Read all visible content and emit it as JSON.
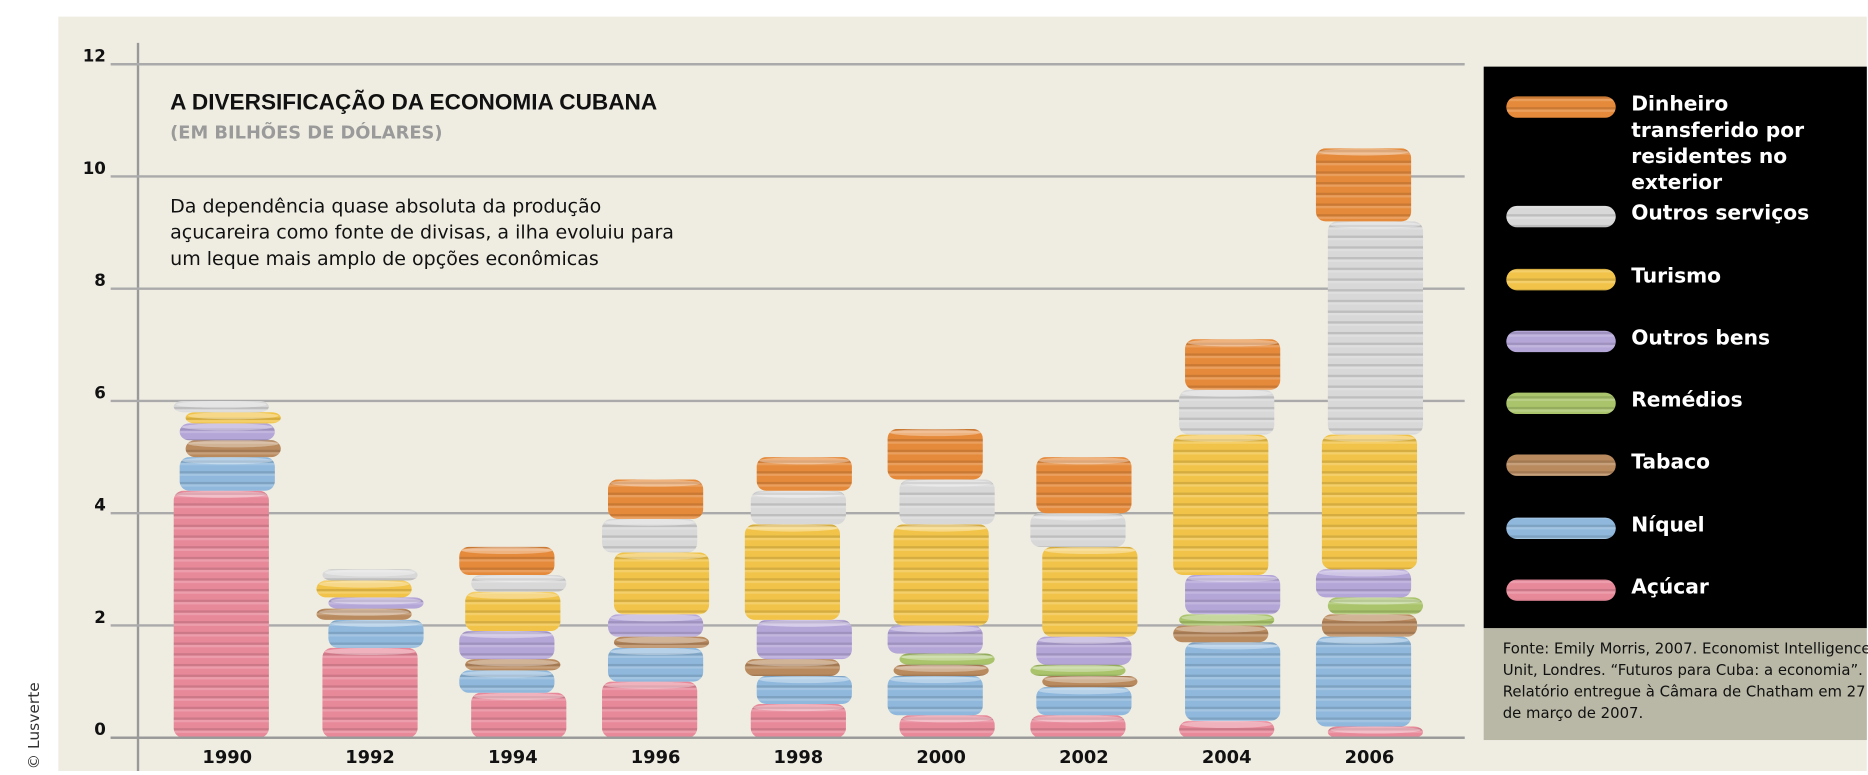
{
  "chart_data": {
    "type": "stacked_bar",
    "title": "A DIVERSIFICAÇÃO DA ECONOMIA CUBANA",
    "subtitle": "(EM BILHÕES DE DÓLARES)",
    "annotation": [
      "Da dependência quase absoluta da produção",
      "açucareira como fonte de divisas, a ilha evoluiu para",
      "um leque mais amplo de opções econômicas"
    ],
    "source": [
      "Fonte: Emily Morris, 2007. Economist Intelligence",
      "Unit, Londres. “Futuros para Cuba: a economia”.",
      "Relatório entregue à Câmara de Chatham em 27",
      "de março de 2007."
    ],
    "credit": "© Lusverte",
    "categories": [
      "1990",
      "1992",
      "1994",
      "1996",
      "1998",
      "2000",
      "2002",
      "2004",
      "2006"
    ],
    "series": [
      {
        "name": "Açúcar",
        "color": "#e8899a",
        "values": [
          4.4,
          1.6,
          0.8,
          1.0,
          0.6,
          0.4,
          0.4,
          0.3,
          0.2
        ]
      },
      {
        "name": "Níquel",
        "color": "#8fb8dc",
        "values": [
          0.6,
          0.5,
          0.4,
          0.6,
          0.5,
          0.7,
          0.5,
          1.4,
          1.6
        ]
      },
      {
        "name": "Tabaco",
        "color": "#b98a5e",
        "values": [
          0.3,
          0.2,
          0.2,
          0.2,
          0.3,
          0.2,
          0.2,
          0.3,
          0.4
        ]
      },
      {
        "name": "Remédios",
        "color": "#a9c46b",
        "values": [
          0,
          0,
          0,
          0,
          0,
          0.2,
          0.2,
          0.2,
          0.3
        ]
      },
      {
        "name": "Outros bens",
        "color": "#b5a6d8",
        "values": [
          0.3,
          0.2,
          0.5,
          0.4,
          0.7,
          0.5,
          0.5,
          0.7,
          0.5
        ]
      },
      {
        "name": "Turismo",
        "color": "#f1c449",
        "values": [
          0.2,
          0.3,
          0.7,
          1.1,
          1.7,
          1.8,
          1.6,
          2.5,
          2.4
        ]
      },
      {
        "name": "Outros serviços",
        "color": "#d8d8d8",
        "values": [
          0.2,
          0.2,
          0.3,
          0.6,
          0.6,
          0.8,
          0.6,
          0.8,
          3.8
        ]
      },
      {
        "name": "Dinheiro transferido por residentes no exterior",
        "color": "#e58a3a",
        "values": [
          0,
          0,
          0.5,
          0.7,
          0.6,
          0.9,
          1.0,
          0.9,
          1.3
        ]
      }
    ],
    "ylim": [
      0,
      12
    ],
    "yticks": [
      0,
      2,
      4,
      6,
      8,
      10,
      12
    ],
    "grid": true,
    "legend": "right"
  }
}
